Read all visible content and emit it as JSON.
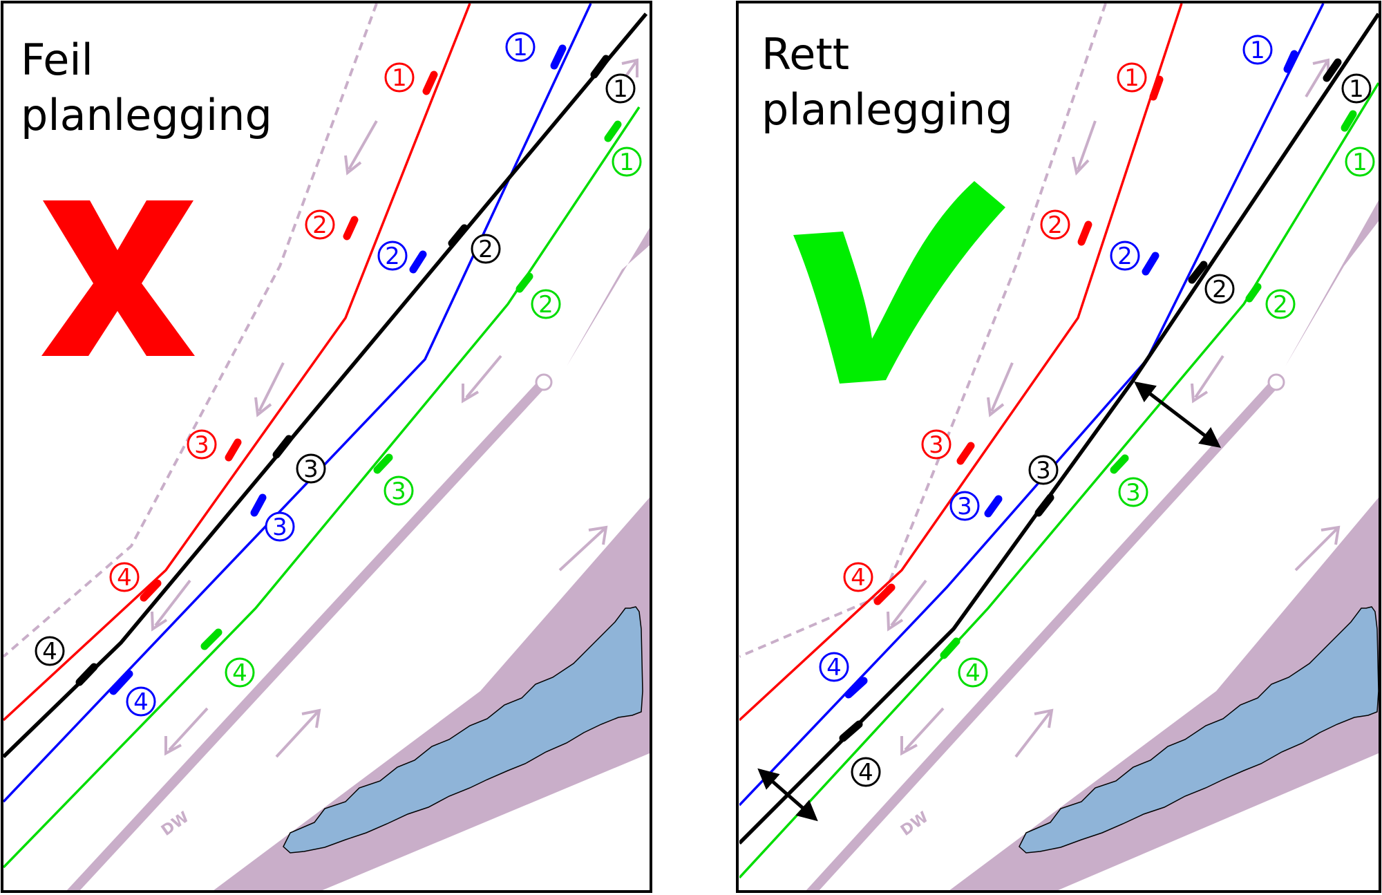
{
  "colors": {
    "red": "#ff0000",
    "blue": "#0000ff",
    "black": "#000000",
    "green": "#00dd00",
    "purple": "#c9aec9",
    "water": "#8fb4d8",
    "verdict_wrong": "#ff0000",
    "verdict_right": "#00ee00"
  },
  "panels": [
    {
      "title_lines": [
        "Feil",
        "planlegging"
      ],
      "verdict_icon": "cross-mark-icon",
      "dw_label": "DW",
      "waypoints": {
        "red": [
          "1",
          "2",
          "3",
          "4"
        ],
        "blue": [
          "1",
          "2",
          "3",
          "4"
        ],
        "black": [
          "1",
          "2",
          "3",
          "4"
        ],
        "green": [
          "1",
          "2",
          "3",
          "4"
        ]
      }
    },
    {
      "title_lines": [
        "Rett",
        "planlegging"
      ],
      "verdict_icon": "check-mark-icon",
      "dw_label": "DW",
      "waypoints": {
        "red": [
          "1",
          "2",
          "3",
          "4"
        ],
        "blue": [
          "1",
          "2",
          "3",
          "4"
        ],
        "black": [
          "1",
          "2",
          "3",
          "4"
        ],
        "green": [
          "1",
          "2",
          "3",
          "4"
        ]
      }
    }
  ]
}
